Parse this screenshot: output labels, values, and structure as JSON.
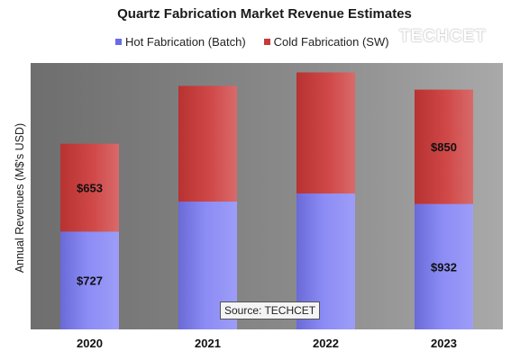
{
  "chart_data": {
    "type": "bar",
    "stacked": true,
    "title": "Quartz Fabrication Market Revenue Estimates",
    "ylabel": "Annual Revenues (M$'s USD)",
    "xlabel": "",
    "categories": [
      "2020",
      "2021",
      "2022",
      "2023"
    ],
    "series": [
      {
        "name": "Hot Fabrication (Batch)",
        "color": "#8080f0",
        "values": [
          727,
          950,
          1010,
          932
        ],
        "labels": [
          "$727",
          "",
          "",
          "$932"
        ]
      },
      {
        "name": "Cold Fabrication (SW)",
        "color": "#c83a3a",
        "values": [
          653,
          860,
          900,
          850
        ],
        "labels": [
          "$653",
          "",
          "",
          "$850"
        ]
      }
    ],
    "ylim": [
      0,
      1980
    ],
    "grid": false,
    "legend_position": "top",
    "plot_background": "#808080"
  },
  "watermark": "TECHCET",
  "source_note": "Source: TECHCET"
}
